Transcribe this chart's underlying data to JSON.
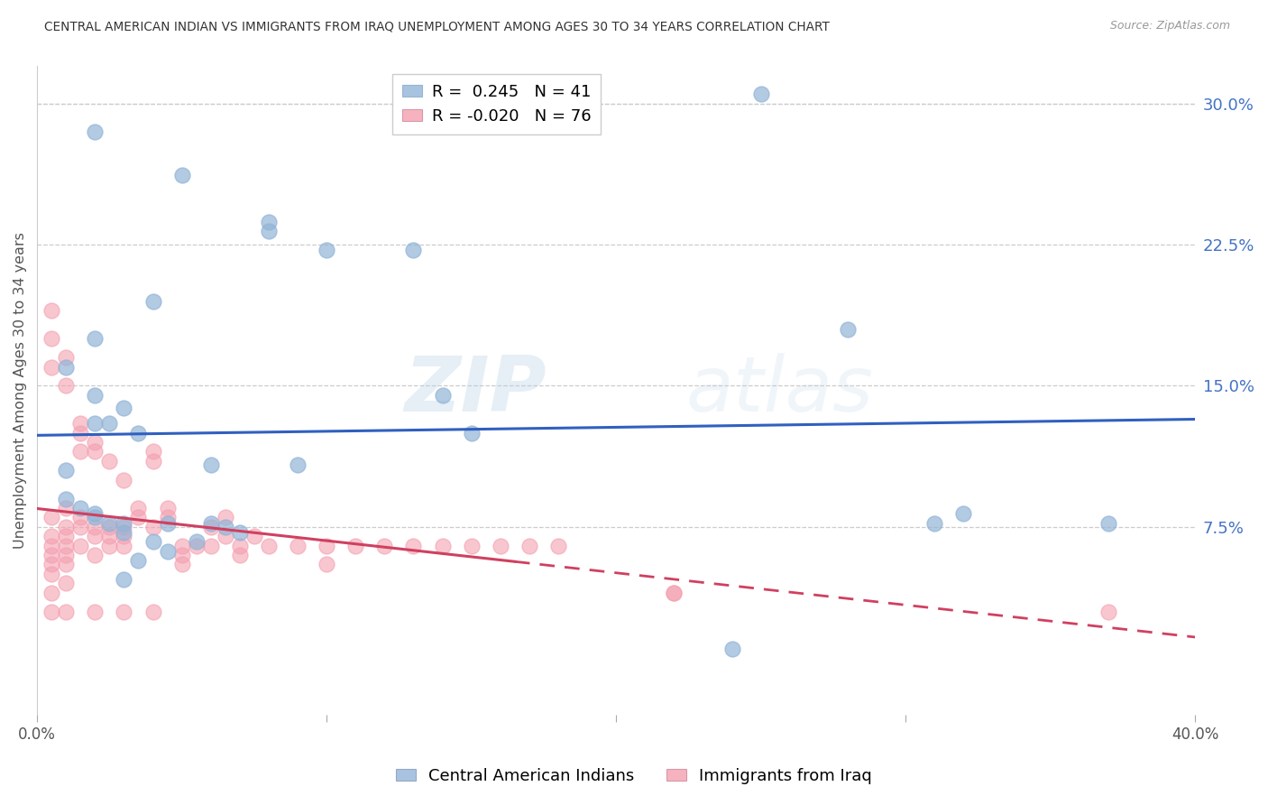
{
  "title": "CENTRAL AMERICAN INDIAN VS IMMIGRANTS FROM IRAQ UNEMPLOYMENT AMONG AGES 30 TO 34 YEARS CORRELATION CHART",
  "source": "Source: ZipAtlas.com",
  "ylabel": "Unemployment Among Ages 30 to 34 years",
  "xlim": [
    0.0,
    0.4
  ],
  "ylim": [
    -0.025,
    0.32
  ],
  "ytick_right_labels": [
    "30.0%",
    "22.5%",
    "15.0%",
    "7.5%"
  ],
  "ytick_right_values": [
    0.3,
    0.225,
    0.15,
    0.075
  ],
  "blue_R": 0.245,
  "blue_N": 41,
  "pink_R": -0.02,
  "pink_N": 76,
  "blue_color": "#92b4d7",
  "pink_color": "#f4a0b0",
  "blue_line_color": "#3060c0",
  "pink_line_color": "#d04060",
  "blue_label": "Central American Indians",
  "pink_label": "Immigrants from Iraq",
  "watermark_zip": "ZIP",
  "watermark_atlas": "atlas",
  "blue_scatter_x": [
    0.02,
    0.05,
    0.08,
    0.08,
    0.1,
    0.04,
    0.02,
    0.01,
    0.02,
    0.03,
    0.02,
    0.025,
    0.035,
    0.01,
    0.01,
    0.015,
    0.02,
    0.02,
    0.025,
    0.045,
    0.06,
    0.065,
    0.07,
    0.13,
    0.15,
    0.09,
    0.06,
    0.03,
    0.03,
    0.04,
    0.055,
    0.045,
    0.035,
    0.03,
    0.14,
    0.28,
    0.31,
    0.32,
    0.37,
    0.25,
    0.24
  ],
  "blue_scatter_y": [
    0.285,
    0.262,
    0.237,
    0.232,
    0.222,
    0.195,
    0.175,
    0.16,
    0.145,
    0.138,
    0.13,
    0.13,
    0.125,
    0.105,
    0.09,
    0.085,
    0.082,
    0.08,
    0.077,
    0.077,
    0.077,
    0.075,
    0.072,
    0.222,
    0.125,
    0.108,
    0.108,
    0.077,
    0.072,
    0.067,
    0.067,
    0.062,
    0.057,
    0.047,
    0.145,
    0.18,
    0.077,
    0.082,
    0.077,
    0.305,
    0.01
  ],
  "pink_scatter_x": [
    0.005,
    0.005,
    0.005,
    0.005,
    0.005,
    0.005,
    0.005,
    0.005,
    0.005,
    0.005,
    0.01,
    0.01,
    0.01,
    0.01,
    0.01,
    0.01,
    0.01,
    0.01,
    0.01,
    0.015,
    0.015,
    0.015,
    0.015,
    0.015,
    0.015,
    0.02,
    0.02,
    0.02,
    0.02,
    0.02,
    0.025,
    0.025,
    0.025,
    0.025,
    0.03,
    0.03,
    0.03,
    0.03,
    0.035,
    0.035,
    0.04,
    0.04,
    0.04,
    0.045,
    0.045,
    0.05,
    0.05,
    0.05,
    0.055,
    0.06,
    0.06,
    0.065,
    0.065,
    0.07,
    0.07,
    0.075,
    0.08,
    0.09,
    0.1,
    0.1,
    0.11,
    0.12,
    0.13,
    0.14,
    0.15,
    0.16,
    0.17,
    0.18,
    0.22,
    0.005,
    0.01,
    0.02,
    0.03,
    0.04,
    0.22,
    0.37
  ],
  "pink_scatter_y": [
    0.19,
    0.175,
    0.16,
    0.08,
    0.07,
    0.065,
    0.06,
    0.055,
    0.05,
    0.04,
    0.165,
    0.15,
    0.085,
    0.075,
    0.07,
    0.065,
    0.06,
    0.055,
    0.045,
    0.13,
    0.125,
    0.115,
    0.08,
    0.075,
    0.065,
    0.12,
    0.115,
    0.075,
    0.07,
    0.06,
    0.11,
    0.075,
    0.07,
    0.065,
    0.1,
    0.075,
    0.07,
    0.065,
    0.085,
    0.08,
    0.115,
    0.11,
    0.075,
    0.085,
    0.08,
    0.065,
    0.06,
    0.055,
    0.065,
    0.075,
    0.065,
    0.08,
    0.07,
    0.065,
    0.06,
    0.07,
    0.065,
    0.065,
    0.065,
    0.055,
    0.065,
    0.065,
    0.065,
    0.065,
    0.065,
    0.065,
    0.065,
    0.065,
    0.04,
    0.03,
    0.03,
    0.03,
    0.03,
    0.03,
    0.04,
    0.03
  ]
}
